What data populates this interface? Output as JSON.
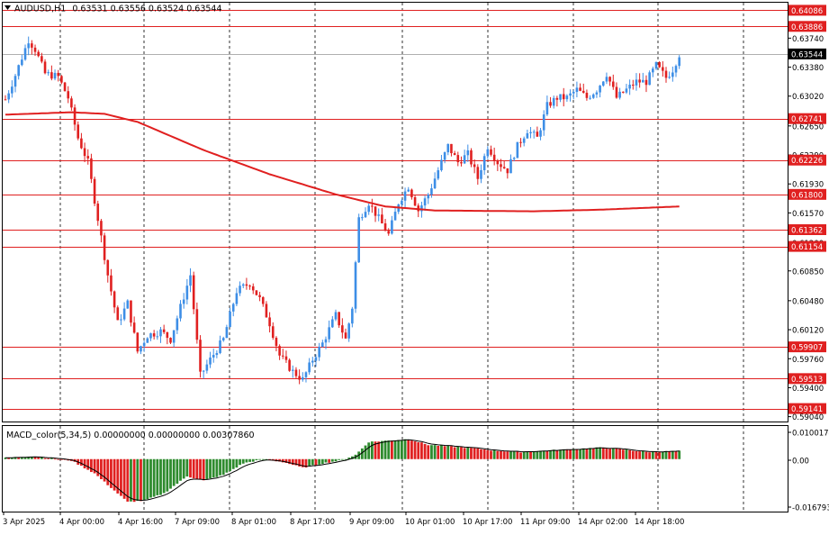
{
  "header": {
    "triangle_icon": "chevron-down-icon",
    "symbol_tf": "AUDUSD,H1",
    "ohlc": "0.63531 0.63556 0.63524 0.63544"
  },
  "macd_header": "MACD_color(5,34,5) 0.00000000 0.00000000 0.00307860",
  "colors": {
    "bull": "#3d8ee6",
    "bear": "#e02020",
    "level_line": "#e02020",
    "ma_line": "#e02020",
    "grid": "#000000",
    "hist_up": "#2e8b2e",
    "hist_down": "#e02020",
    "signal": "#000000"
  },
  "price_axis": {
    "ticks": [
      "0.63740",
      "0.63380",
      "0.63020",
      "0.62650",
      "0.62290",
      "0.61930",
      "0.61570",
      "0.61200",
      "0.60850",
      "0.60480",
      "0.60120",
      "0.59760",
      "0.59400",
      "0.59040"
    ],
    "level_labels": [
      "0.64086",
      "0.63886",
      "0.62741",
      "0.62226",
      "0.61800",
      "0.61362",
      "0.61154",
      "0.59907",
      "0.59513",
      "0.59141"
    ],
    "current_price": "0.63544"
  },
  "macd_axis": {
    "ticks": [
      "0.0100174",
      "0.00",
      "-0.0167932"
    ]
  },
  "time_axis": {
    "labels": [
      "3 Apr 2025",
      "4 Apr 00:00",
      "4 Apr 16:00",
      "7 Apr 09:00",
      "8 Apr 01:00",
      "8 Apr 17:00",
      "9 Apr 09:00",
      "10 Apr 01:00",
      "10 Apr 17:00",
      "11 Apr 09:00",
      "14 Apr 02:00",
      "14 Apr 18:00"
    ]
  },
  "chart_data": {
    "type": "candlestick",
    "symbol": "AUDUSD",
    "timeframe": "H1",
    "ylim": [
      0.5898,
      0.6418
    ],
    "horizontal_levels": [
      0.64086,
      0.63886,
      0.62741,
      0.62226,
      0.618,
      0.61362,
      0.61154,
      0.59907,
      0.59513,
      0.59141
    ],
    "close_path": [
      {
        "bar": 0,
        "price": 0.6298
      },
      {
        "bar": 3,
        "price": 0.6328
      },
      {
        "bar": 7,
        "price": 0.6372
      },
      {
        "bar": 9,
        "price": 0.636
      },
      {
        "bar": 12,
        "price": 0.633
      },
      {
        "bar": 16,
        "price": 0.6326
      },
      {
        "bar": 19,
        "price": 0.63
      },
      {
        "bar": 22,
        "price": 0.625
      },
      {
        "bar": 25,
        "price": 0.622
      },
      {
        "bar": 28,
        "price": 0.615
      },
      {
        "bar": 31,
        "price": 0.608
      },
      {
        "bar": 34,
        "price": 0.602
      },
      {
        "bar": 37,
        "price": 0.6045
      },
      {
        "bar": 40,
        "price": 0.5985
      },
      {
        "bar": 43,
        "price": 0.6005
      },
      {
        "bar": 47,
        "price": 0.601
      },
      {
        "bar": 50,
        "price": 0.6
      },
      {
        "bar": 53,
        "price": 0.604
      },
      {
        "bar": 56,
        "price": 0.608
      },
      {
        "bar": 59,
        "price": 0.5955
      },
      {
        "bar": 62,
        "price": 0.5975
      },
      {
        "bar": 66,
        "price": 0.6
      },
      {
        "bar": 70,
        "price": 0.606
      },
      {
        "bar": 74,
        "price": 0.607
      },
      {
        "bar": 77,
        "price": 0.605
      },
      {
        "bar": 80,
        "price": 0.602
      },
      {
        "bar": 83,
        "price": 0.598
      },
      {
        "bar": 87,
        "price": 0.596
      },
      {
        "bar": 90,
        "price": 0.595
      },
      {
        "bar": 93,
        "price": 0.5975
      },
      {
        "bar": 96,
        "price": 0.5995
      },
      {
        "bar": 100,
        "price": 0.603
      },
      {
        "bar": 103,
        "price": 0.6
      },
      {
        "bar": 105,
        "price": 0.604
      },
      {
        "bar": 107,
        "price": 0.615
      },
      {
        "bar": 110,
        "price": 0.617
      },
      {
        "bar": 113,
        "price": 0.615
      },
      {
        "bar": 116,
        "price": 0.613
      },
      {
        "bar": 119,
        "price": 0.617
      },
      {
        "bar": 122,
        "price": 0.619
      },
      {
        "bar": 125,
        "price": 0.616
      },
      {
        "bar": 128,
        "price": 0.618
      },
      {
        "bar": 131,
        "price": 0.621
      },
      {
        "bar": 134,
        "price": 0.624
      },
      {
        "bar": 137,
        "price": 0.622
      },
      {
        "bar": 140,
        "price": 0.623
      },
      {
        "bar": 143,
        "price": 0.62
      },
      {
        "bar": 146,
        "price": 0.624
      },
      {
        "bar": 149,
        "price": 0.622
      },
      {
        "bar": 152,
        "price": 0.621
      },
      {
        "bar": 155,
        "price": 0.624
      },
      {
        "bar": 158,
        "price": 0.626
      },
      {
        "bar": 161,
        "price": 0.625
      },
      {
        "bar": 164,
        "price": 0.629
      },
      {
        "bar": 167,
        "price": 0.63
      },
      {
        "bar": 170,
        "price": 0.63
      },
      {
        "bar": 173,
        "price": 0.631
      },
      {
        "bar": 176,
        "price": 0.63
      },
      {
        "bar": 179,
        "price": 0.631
      },
      {
        "bar": 182,
        "price": 0.633
      },
      {
        "bar": 185,
        "price": 0.63
      },
      {
        "bar": 188,
        "price": 0.631
      },
      {
        "bar": 191,
        "price": 0.632
      },
      {
        "bar": 194,
        "price": 0.632
      },
      {
        "bar": 197,
        "price": 0.634
      },
      {
        "bar": 200,
        "price": 0.6325
      },
      {
        "bar": 202,
        "price": 0.6335
      },
      {
        "bar": 204,
        "price": 0.6354
      }
    ],
    "moving_average": [
      {
        "bar": 0,
        "price": 0.6279
      },
      {
        "bar": 20,
        "price": 0.6282
      },
      {
        "bar": 30,
        "price": 0.628
      },
      {
        "bar": 40,
        "price": 0.627
      },
      {
        "bar": 60,
        "price": 0.6235
      },
      {
        "bar": 80,
        "price": 0.6205
      },
      {
        "bar": 100,
        "price": 0.618
      },
      {
        "bar": 115,
        "price": 0.6165
      },
      {
        "bar": 130,
        "price": 0.616
      },
      {
        "bar": 160,
        "price": 0.6159
      },
      {
        "bar": 180,
        "price": 0.6161
      },
      {
        "bar": 204,
        "price": 0.6165
      }
    ],
    "macd_histogram": [
      {
        "bar": 0,
        "value": 0.0004
      },
      {
        "bar": 8,
        "value": 0.001
      },
      {
        "bar": 14,
        "value": 0.0003
      },
      {
        "bar": 20,
        "value": -0.0005
      },
      {
        "bar": 27,
        "value": -0.005
      },
      {
        "bar": 33,
        "value": -0.011
      },
      {
        "bar": 37,
        "value": -0.015
      },
      {
        "bar": 42,
        "value": -0.0145
      },
      {
        "bar": 48,
        "value": -0.012
      },
      {
        "bar": 55,
        "value": -0.006
      },
      {
        "bar": 60,
        "value": -0.0075
      },
      {
        "bar": 66,
        "value": -0.0055
      },
      {
        "bar": 72,
        "value": -0.0015
      },
      {
        "bar": 78,
        "value": 0.0
      },
      {
        "bar": 84,
        "value": -0.001
      },
      {
        "bar": 90,
        "value": -0.003
      },
      {
        "bar": 96,
        "value": -0.0015
      },
      {
        "bar": 102,
        "value": -0.0003
      },
      {
        "bar": 106,
        "value": 0.0015
      },
      {
        "bar": 110,
        "value": 0.006
      },
      {
        "bar": 116,
        "value": 0.0065
      },
      {
        "bar": 122,
        "value": 0.007
      },
      {
        "bar": 128,
        "value": 0.005
      },
      {
        "bar": 134,
        "value": 0.0045
      },
      {
        "bar": 140,
        "value": 0.004
      },
      {
        "bar": 148,
        "value": 0.003
      },
      {
        "bar": 156,
        "value": 0.0025
      },
      {
        "bar": 164,
        "value": 0.003
      },
      {
        "bar": 172,
        "value": 0.0035
      },
      {
        "bar": 180,
        "value": 0.004
      },
      {
        "bar": 186,
        "value": 0.0035
      },
      {
        "bar": 194,
        "value": 0.0025
      },
      {
        "bar": 204,
        "value": 0.0028
      }
    ],
    "macd_ylim": [
      -0.0167932,
      0.0100174
    ]
  }
}
